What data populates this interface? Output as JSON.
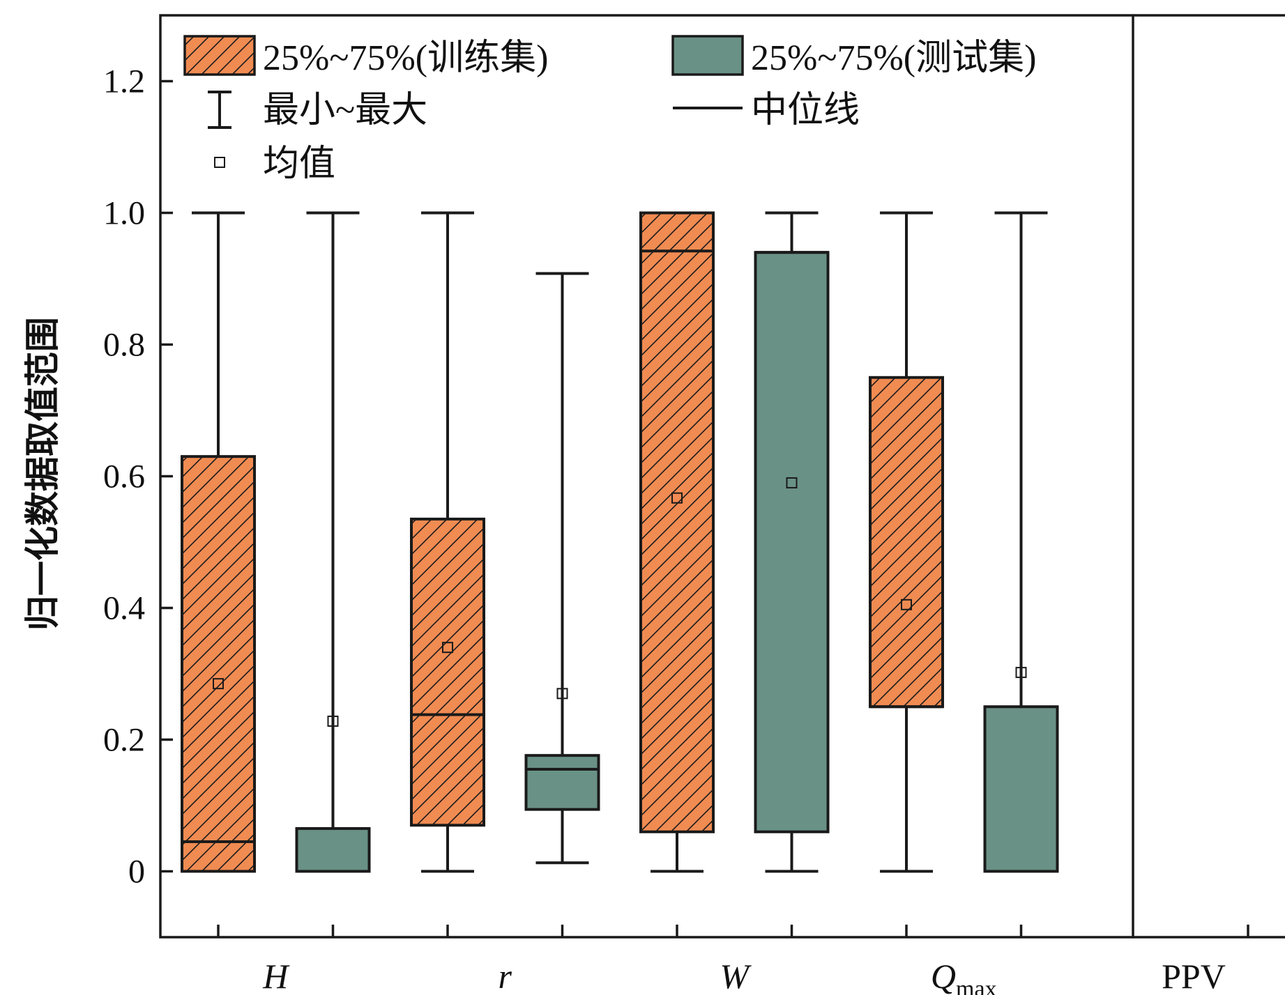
{
  "chart_data": {
    "type": "box",
    "ylabel": "归一化数据取值范围",
    "ylim": [
      -0.1,
      1.3
    ],
    "yticks": [
      0,
      0.2,
      0.4,
      0.6,
      0.8,
      1.0,
      1.2
    ],
    "ytick_labels": [
      "0",
      "0.2",
      "0.4",
      "0.6",
      "0.8",
      "1.0",
      "1.2"
    ],
    "colors": {
      "train": "#F08B52",
      "test": "#6A9186",
      "line": "#1a1a1a"
    },
    "categories": [
      {
        "label": "H",
        "italic": true,
        "sub": ""
      },
      {
        "label": "r",
        "italic": true,
        "sub": ""
      },
      {
        "label": "W",
        "italic": true,
        "sub": ""
      },
      {
        "label": "Q",
        "italic": true,
        "sub": "max"
      }
    ],
    "extra_category": {
      "label": "PPV"
    },
    "legend": {
      "train": "25%~75%(训练集)",
      "test": "25%~75%(测试集)",
      "whisker": "最小~最大",
      "median": "中位线",
      "mean": "均值"
    },
    "boxes": [
      {
        "category": "H",
        "set": "train",
        "min": 0,
        "q1": 0,
        "median": 0.045,
        "q3": 0.63,
        "max": 1.0,
        "mean": 0.285
      },
      {
        "category": "H",
        "set": "test",
        "min": 0,
        "q1": 0,
        "median": 0.0,
        "q3": 0.065,
        "max": 1.0,
        "mean": 0.228
      },
      {
        "category": "r",
        "set": "train",
        "min": 0,
        "q1": 0.07,
        "median": 0.238,
        "q3": 0.535,
        "max": 1.0,
        "mean": 0.34
      },
      {
        "category": "r",
        "set": "test",
        "min": 0.013,
        "q1": 0.094,
        "median": 0.155,
        "q3": 0.176,
        "max": 0.908,
        "mean": 0.27
      },
      {
        "category": "W",
        "set": "train",
        "min": 0,
        "q1": 0.06,
        "median": 0.942,
        "q3": 1.0,
        "max": 1.0,
        "mean": 0.567
      },
      {
        "category": "W",
        "set": "test",
        "min": 0,
        "q1": 0.06,
        "median": 0.94,
        "q3": 0.94,
        "max": 1.0,
        "mean": 0.59
      },
      {
        "category": "Q_max",
        "set": "train",
        "min": 0,
        "q1": 0.25,
        "median": 0.25,
        "q3": 0.75,
        "max": 1.0,
        "mean": 0.405
      },
      {
        "category": "Q_max",
        "set": "test",
        "min": 0,
        "q1": 0.0,
        "median": 0.0,
        "q3": 0.25,
        "max": 1.0,
        "mean": 0.302
      }
    ]
  }
}
